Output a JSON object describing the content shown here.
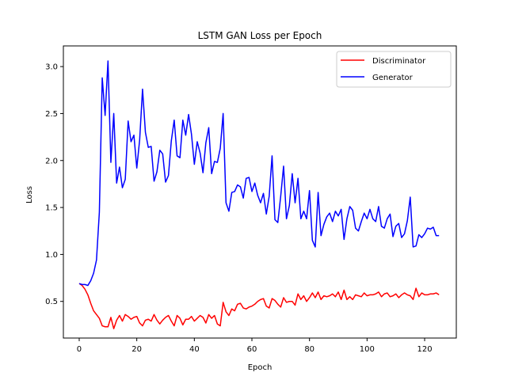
{
  "chart_data": {
    "type": "line",
    "title": "LSTM GAN Loss per Epoch",
    "xlabel": "Epoch",
    "ylabel": "Loss",
    "xlim": [
      -5.5,
      131
    ],
    "ylim": [
      0.11,
      3.22
    ],
    "xticks": [
      0,
      20,
      40,
      60,
      80,
      100,
      120
    ],
    "yticks": [
      0.5,
      1.0,
      1.5,
      2.0,
      2.5,
      3.0
    ],
    "ytick_labels": [
      "0.5",
      "1.0",
      "1.5",
      "2.0",
      "2.5",
      "3.0"
    ],
    "grid": false,
    "legend": "top-right",
    "x": [
      0,
      1,
      2,
      3,
      4,
      5,
      6,
      7,
      8,
      9,
      10,
      11,
      12,
      13,
      14,
      15,
      16,
      17,
      18,
      19,
      20,
      21,
      22,
      23,
      24,
      25,
      26,
      27,
      28,
      29,
      30,
      31,
      32,
      33,
      34,
      35,
      36,
      37,
      38,
      39,
      40,
      41,
      42,
      43,
      44,
      45,
      46,
      47,
      48,
      49,
      50,
      51,
      52,
      53,
      54,
      55,
      56,
      57,
      58,
      59,
      60,
      61,
      62,
      63,
      64,
      65,
      66,
      67,
      68,
      69,
      70,
      71,
      72,
      73,
      74,
      75,
      76,
      77,
      78,
      79,
      80,
      81,
      82,
      83,
      84,
      85,
      86,
      87,
      88,
      89,
      90,
      91,
      92,
      93,
      94,
      95,
      96,
      97,
      98,
      99,
      100,
      101,
      102,
      103,
      104,
      105,
      106,
      107,
      108,
      109,
      110,
      111,
      112,
      113,
      114,
      115,
      116,
      117,
      118,
      119,
      120,
      121,
      122,
      123,
      124,
      125
    ],
    "series": [
      {
        "name": "Discriminator",
        "color": "#ff0000",
        "values": [
          0.69,
          0.67,
          0.63,
          0.57,
          0.48,
          0.4,
          0.36,
          0.32,
          0.24,
          0.23,
          0.23,
          0.33,
          0.21,
          0.3,
          0.35,
          0.29,
          0.36,
          0.34,
          0.31,
          0.33,
          0.34,
          0.27,
          0.24,
          0.3,
          0.31,
          0.29,
          0.36,
          0.3,
          0.26,
          0.3,
          0.33,
          0.35,
          0.29,
          0.24,
          0.35,
          0.32,
          0.25,
          0.31,
          0.31,
          0.34,
          0.29,
          0.32,
          0.35,
          0.33,
          0.27,
          0.36,
          0.32,
          0.35,
          0.26,
          0.24,
          0.49,
          0.39,
          0.35,
          0.42,
          0.4,
          0.47,
          0.48,
          0.43,
          0.42,
          0.44,
          0.45,
          0.47,
          0.5,
          0.52,
          0.53,
          0.45,
          0.43,
          0.53,
          0.51,
          0.47,
          0.44,
          0.54,
          0.49,
          0.5,
          0.5,
          0.46,
          0.58,
          0.52,
          0.56,
          0.5,
          0.54,
          0.59,
          0.54,
          0.6,
          0.52,
          0.56,
          0.55,
          0.56,
          0.58,
          0.55,
          0.6,
          0.52,
          0.62,
          0.52,
          0.55,
          0.52,
          0.57,
          0.56,
          0.55,
          0.59,
          0.56,
          0.57,
          0.57,
          0.58,
          0.6,
          0.55,
          0.58,
          0.59,
          0.55,
          0.56,
          0.58,
          0.54,
          0.57,
          0.59,
          0.57,
          0.56,
          0.52,
          0.64,
          0.55,
          0.59,
          0.57,
          0.57,
          0.58,
          0.58,
          0.59,
          0.57
        ]
      },
      {
        "name": "Generator",
        "color": "#0000ff",
        "values": [
          0.69,
          0.68,
          0.68,
          0.67,
          0.72,
          0.8,
          0.94,
          1.45,
          2.88,
          2.48,
          3.06,
          1.98,
          2.5,
          1.76,
          1.93,
          1.71,
          1.8,
          2.42,
          2.2,
          2.27,
          1.92,
          2.22,
          2.76,
          2.3,
          2.14,
          2.15,
          1.78,
          1.88,
          2.11,
          2.07,
          1.77,
          1.84,
          2.21,
          2.43,
          2.05,
          2.03,
          2.43,
          2.27,
          2.49,
          2.28,
          1.96,
          2.2,
          2.08,
          1.87,
          2.19,
          2.35,
          1.86,
          1.99,
          1.98,
          2.13,
          2.5,
          1.55,
          1.46,
          1.66,
          1.67,
          1.74,
          1.72,
          1.6,
          1.81,
          1.82,
          1.67,
          1.76,
          1.63,
          1.55,
          1.65,
          1.43,
          1.62,
          2.05,
          1.37,
          1.34,
          1.62,
          1.94,
          1.38,
          1.52,
          1.86,
          1.55,
          1.81,
          1.38,
          1.46,
          1.38,
          1.68,
          1.15,
          1.08,
          1.66,
          1.2,
          1.32,
          1.4,
          1.44,
          1.35,
          1.46,
          1.41,
          1.48,
          1.16,
          1.38,
          1.51,
          1.47,
          1.28,
          1.25,
          1.35,
          1.44,
          1.38,
          1.48,
          1.38,
          1.35,
          1.51,
          1.3,
          1.28,
          1.38,
          1.43,
          1.19,
          1.3,
          1.33,
          1.18,
          1.22,
          1.36,
          1.61,
          1.08,
          1.09,
          1.21,
          1.18,
          1.22,
          1.28,
          1.27,
          1.29,
          1.2,
          1.2
        ]
      }
    ]
  }
}
